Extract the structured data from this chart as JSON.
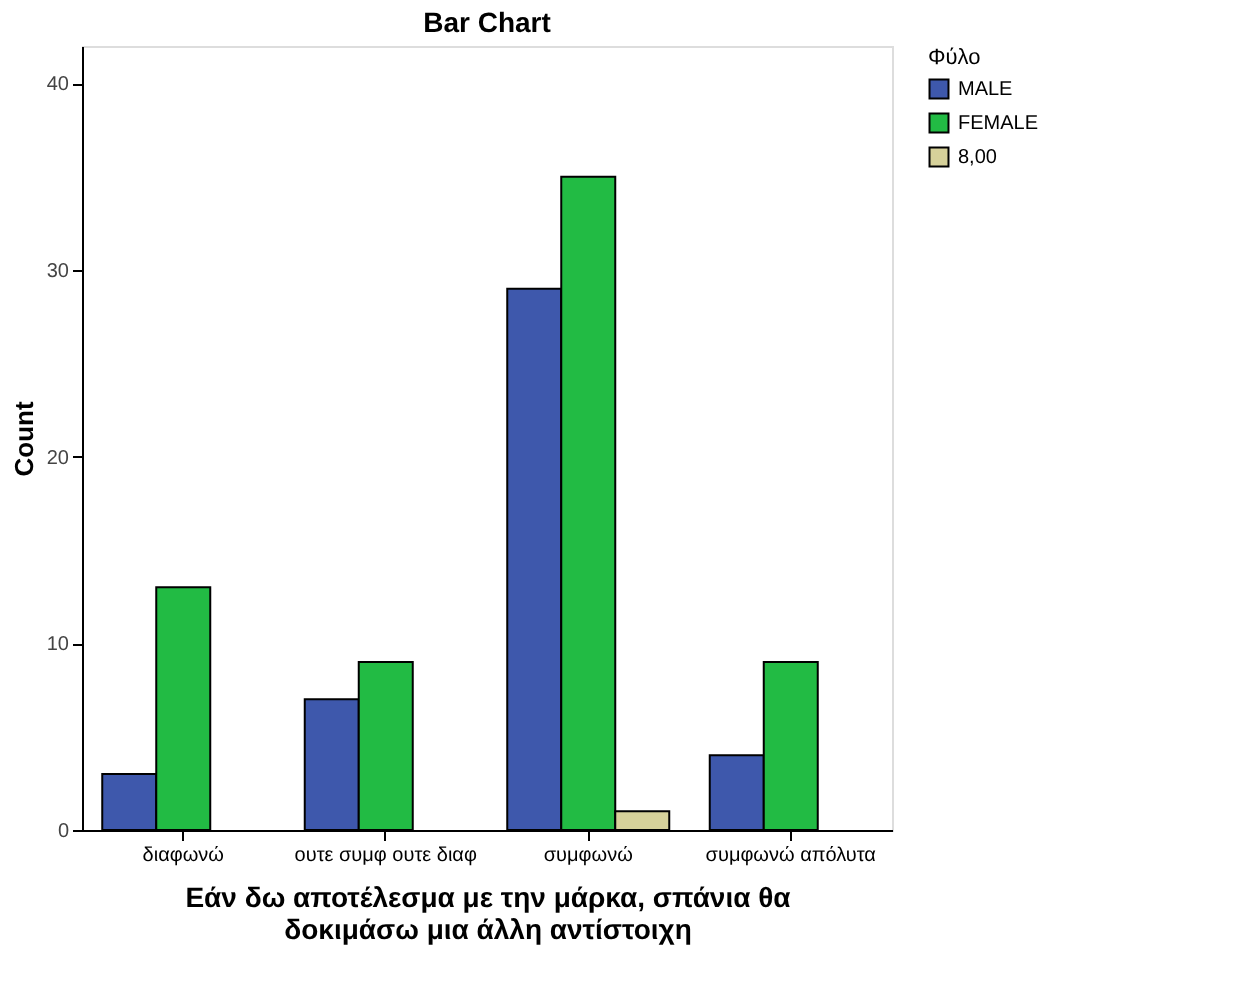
{
  "chart_data": {
    "type": "bar",
    "title": "Bar Chart",
    "xlabel": "Εάν δω αποτέλεσμα με την μάρκα, σπάνια θα δοκιμάσω μια άλλη αντίστοιχη",
    "ylabel": "Count",
    "legend_title": "Φύλο",
    "categories": [
      "διαφωνώ",
      "ουτε συμφ ουτε διαφ",
      "συμφωνώ",
      "συμφωνώ απόλυτα"
    ],
    "series": [
      {
        "name": "MALE",
        "color": "#3e58ac",
        "values": [
          3,
          7,
          29,
          4
        ]
      },
      {
        "name": "FEMALE",
        "color": "#22bb44",
        "values": [
          13,
          9,
          35,
          9
        ]
      },
      {
        "name": "8,00",
        "color": "#d6d19a",
        "values": [
          0,
          0,
          1,
          0
        ]
      }
    ],
    "ylim": [
      0,
      42
    ],
    "yticks": [
      0,
      10,
      20,
      30,
      40
    ],
    "grid": false,
    "legend": "top right"
  }
}
